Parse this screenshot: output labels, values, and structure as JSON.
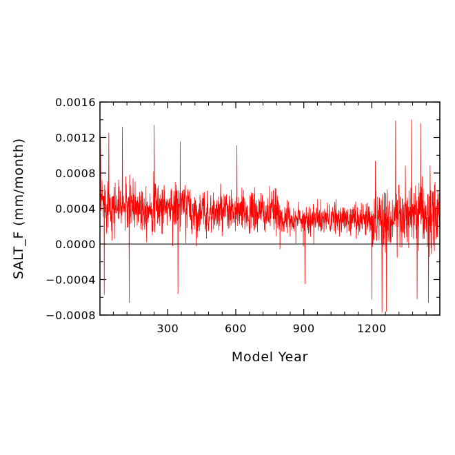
{
  "chart_data": {
    "type": "line",
    "title": "",
    "xlabel": "Model Year",
    "ylabel": "SALT_F (mm/month)",
    "xlim": [
      1,
      1500
    ],
    "ylim": [
      -0.0008,
      0.0016
    ],
    "x_ticks": [
      300,
      600,
      900,
      1200
    ],
    "x_tick_labels": [
      "300",
      "600",
      "900",
      "1200"
    ],
    "y_ticks": [
      -0.0008,
      -0.0004,
      0.0,
      0.0004,
      0.0008,
      0.0012,
      0.0016
    ],
    "y_tick_labels": [
      "−0.0008",
      "−0.0004",
      "0.0000",
      "0.0004",
      "0.0008",
      "0.0012",
      "0.0016"
    ],
    "reference_line_y": 0.0,
    "grid": false,
    "line_color": "#ff0000",
    "series": [
      {
        "x_start": 1,
        "x_step": 1,
        "envelope": [
          {
            "x_from": 1,
            "x_to": 50,
            "mean": 0.00048,
            "spread": 0.0003
          },
          {
            "x_from": 50,
            "x_to": 400,
            "mean": 0.00042,
            "spread": 0.00026
          },
          {
            "x_from": 400,
            "x_to": 800,
            "mean": 0.00035,
            "spread": 0.00022
          },
          {
            "x_from": 800,
            "x_to": 1200,
            "mean": 0.00028,
            "spread": 0.00016
          },
          {
            "x_from": 1200,
            "x_to": 1500,
            "mean": 0.0003,
            "spread": 0.00036
          }
        ],
        "peaks": [
          {
            "x": 3,
            "y": 0.00121
          },
          {
            "x": 40,
            "y": 0.00125
          },
          {
            "x": 100,
            "y": 0.00132
          },
          {
            "x": 240,
            "y": 0.00134
          },
          {
            "x": 355,
            "y": 0.00115
          },
          {
            "x": 605,
            "y": 0.00111
          },
          {
            "x": 1305,
            "y": 0.00139
          },
          {
            "x": 1375,
            "y": 0.0014
          },
          {
            "x": 1415,
            "y": 0.00136
          },
          {
            "x": 20,
            "y": -0.00057
          },
          {
            "x": 130,
            "y": -0.00066
          },
          {
            "x": 345,
            "y": -0.00056
          },
          {
            "x": 905,
            "y": -0.00045
          },
          {
            "x": 1200,
            "y": -0.00062
          },
          {
            "x": 1245,
            "y": -0.00077
          },
          {
            "x": 1265,
            "y": -0.00076
          },
          {
            "x": 1400,
            "y": -0.00062
          },
          {
            "x": 1450,
            "y": -0.00066
          }
        ]
      }
    ]
  }
}
